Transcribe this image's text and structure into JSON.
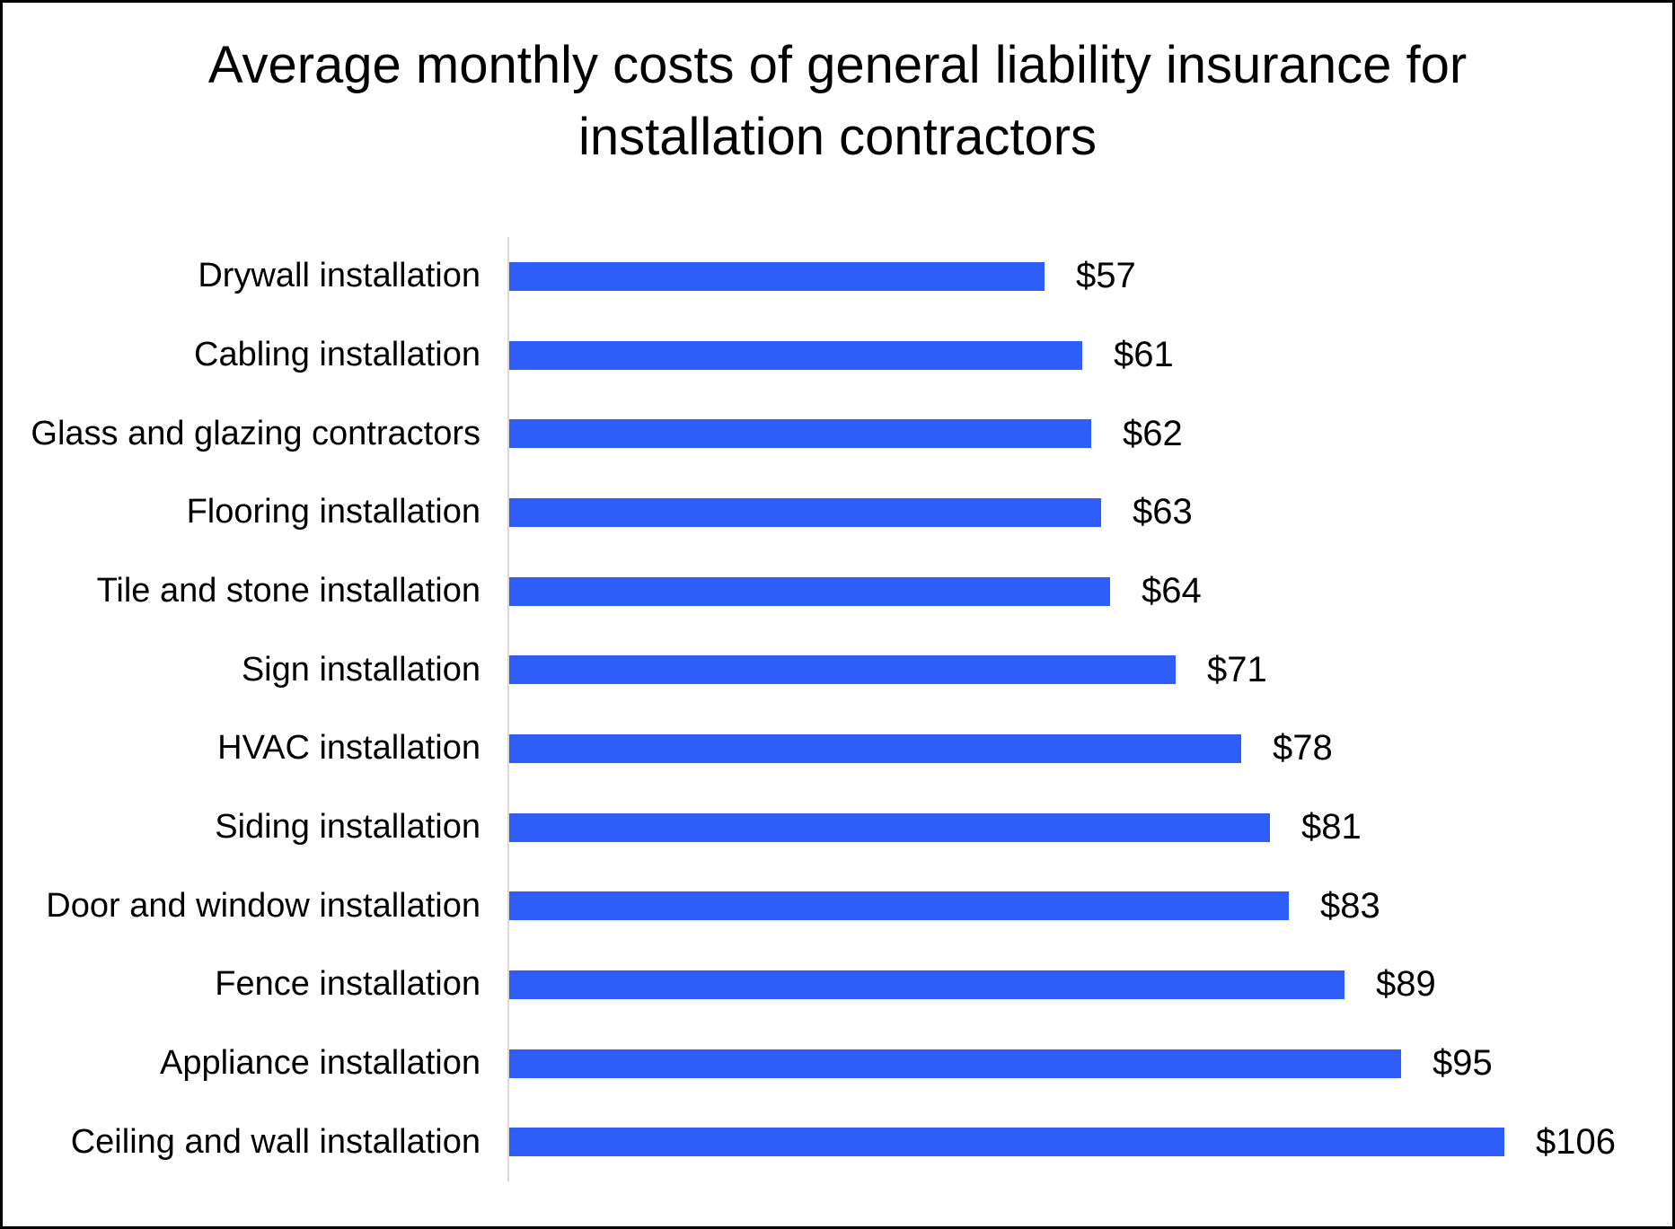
{
  "title_lines": [
    "Average monthly costs of general liability insurance for",
    "installation contractors"
  ],
  "chart_data": {
    "type": "bar",
    "orientation": "horizontal",
    "title": "Average monthly costs of general liability insurance for installation contractors",
    "categories": [
      "Drywall installation",
      "Cabling installation",
      "Glass and glazing contractors",
      "Flooring installation",
      "Tile and stone installation",
      "Sign installation",
      "HVAC installation",
      "Siding installation",
      "Door and window installation",
      "Fence installation",
      "Appliance installation",
      "Ceiling and wall installation"
    ],
    "values": [
      57,
      61,
      62,
      63,
      64,
      71,
      78,
      81,
      83,
      89,
      95,
      106
    ],
    "value_labels": [
      "$57",
      "$61",
      "$62",
      "$63",
      "$64",
      "$71",
      "$78",
      "$81",
      "$83",
      "$89",
      "$95",
      "$106"
    ],
    "xlabel": "",
    "ylabel": "",
    "xlim": [
      0,
      106
    ],
    "grid": false,
    "legend": false,
    "bar_color": "#2F5DF8",
    "axis_line_color": "#D9D9D9",
    "text_color": "#000000",
    "background_color": "#FFFFFF",
    "border_color": "#000000"
  }
}
